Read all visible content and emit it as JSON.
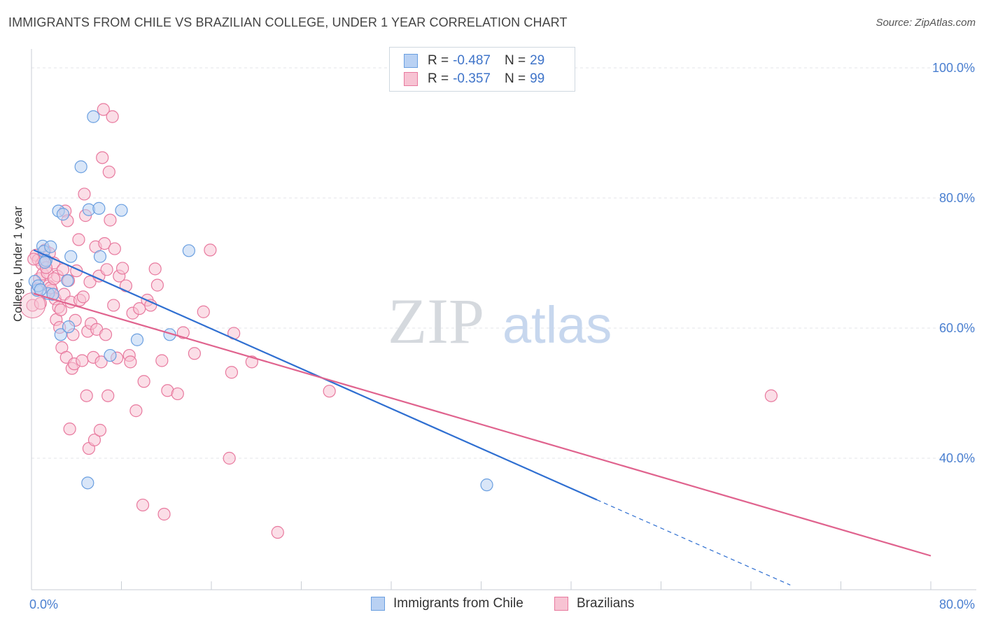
{
  "title": "IMMIGRANTS FROM CHILE VS BRAZILIAN COLLEGE, UNDER 1 YEAR CORRELATION CHART",
  "source": "Source: ZipAtlas.com",
  "watermark": {
    "zip": "ZIP",
    "atlas": "atlas"
  },
  "legend": {
    "items": [
      {
        "r_label": "R = ",
        "r_value": "-0.487",
        "n_label": "N = ",
        "n_value": "29"
      },
      {
        "r_label": "R = ",
        "r_value": "-0.357",
        "n_label": "N = ",
        "n_value": "99"
      }
    ]
  },
  "colors": {
    "blue": "#6a9fe0",
    "blue_fill": "#b9d1f3",
    "blue_line": "#2f6fd1",
    "pink": "#e8799e",
    "pink_fill": "#f7c3d3",
    "pink_line": "#e0638e",
    "grid": "#e3e6ea",
    "tick_text": "#4a7fd0"
  },
  "chart_data": {
    "type": "scatter",
    "xlabel": "",
    "ylabel": "College, Under 1 year",
    "xlim": [
      0,
      80
    ],
    "ylim": [
      20,
      102
    ],
    "x_tick_labels": [
      "0.0%",
      "80.0%"
    ],
    "y_ticks": [
      40,
      60,
      80,
      100
    ],
    "y_tick_labels": [
      "40.0%",
      "60.0%",
      "80.0%",
      "100.0%"
    ],
    "grid": true,
    "legend_position": "top-center",
    "series": [
      {
        "name": "Immigrants from Chile",
        "color": "blue",
        "points": [
          [
            0.3,
            67.2
          ],
          [
            0.5,
            65.8
          ],
          [
            0.6,
            66.5
          ],
          [
            1.0,
            72.6
          ],
          [
            1.1,
            71.8
          ],
          [
            1.3,
            70.4
          ],
          [
            1.5,
            65.3
          ],
          [
            1.7,
            72.5
          ],
          [
            2.4,
            78.0
          ],
          [
            2.6,
            59.0
          ],
          [
            2.8,
            77.5
          ],
          [
            3.2,
            67.3
          ],
          [
            3.3,
            60.2
          ],
          [
            3.5,
            71.0
          ],
          [
            4.4,
            84.8
          ],
          [
            5.0,
            36.2
          ],
          [
            5.1,
            78.2
          ],
          [
            5.5,
            92.5
          ],
          [
            6.0,
            78.4
          ],
          [
            6.1,
            71.0
          ],
          [
            7.0,
            55.8
          ],
          [
            8.0,
            78.1
          ],
          [
            9.4,
            58.2
          ],
          [
            12.3,
            59.0
          ],
          [
            14.0,
            71.9
          ],
          [
            40.5,
            35.9
          ],
          [
            0.8,
            65.9
          ],
          [
            1.2,
            70.1
          ],
          [
            1.9,
            65.2
          ]
        ],
        "trend": {
          "x0": 0.2,
          "y0": 72.0,
          "x1": 50.3,
          "y1": 33.6,
          "dash_to_x": 67.5,
          "dash_to_y": 20.5
        }
      },
      {
        "name": "Brazilians",
        "color": "pink",
        "points": [
          [
            0.1,
            63.5
          ],
          [
            0.4,
            71.2
          ],
          [
            0.6,
            70.5
          ],
          [
            0.7,
            67.6
          ],
          [
            0.9,
            69.9
          ],
          [
            1.0,
            68.3
          ],
          [
            1.1,
            70.4
          ],
          [
            1.2,
            72.0
          ],
          [
            1.4,
            68.5
          ],
          [
            1.5,
            66.5
          ],
          [
            1.6,
            71.5
          ],
          [
            1.8,
            65.8
          ],
          [
            1.9,
            65.2
          ],
          [
            2.0,
            70.0
          ],
          [
            2.1,
            64.5
          ],
          [
            2.2,
            61.3
          ],
          [
            2.3,
            68.0
          ],
          [
            2.4,
            63.2
          ],
          [
            2.5,
            60.1
          ],
          [
            2.6,
            62.8
          ],
          [
            2.7,
            57.0
          ],
          [
            2.8,
            69.0
          ],
          [
            2.9,
            65.2
          ],
          [
            3.0,
            78.0
          ],
          [
            3.1,
            55.5
          ],
          [
            3.2,
            76.5
          ],
          [
            3.3,
            67.3
          ],
          [
            3.4,
            44.5
          ],
          [
            3.5,
            64.0
          ],
          [
            3.6,
            53.8
          ],
          [
            3.7,
            59.0
          ],
          [
            3.8,
            54.5
          ],
          [
            3.9,
            61.2
          ],
          [
            4.0,
            68.8
          ],
          [
            4.2,
            73.6
          ],
          [
            4.3,
            64.3
          ],
          [
            4.5,
            55.0
          ],
          [
            4.6,
            64.8
          ],
          [
            4.7,
            80.6
          ],
          [
            4.8,
            77.3
          ],
          [
            4.9,
            49.6
          ],
          [
            5.0,
            59.5
          ],
          [
            5.1,
            41.5
          ],
          [
            5.2,
            67.1
          ],
          [
            5.3,
            60.7
          ],
          [
            5.5,
            55.5
          ],
          [
            5.6,
            42.8
          ],
          [
            5.7,
            72.5
          ],
          [
            5.8,
            59.8
          ],
          [
            6.0,
            68.0
          ],
          [
            6.1,
            44.3
          ],
          [
            6.2,
            54.8
          ],
          [
            6.3,
            86.2
          ],
          [
            6.4,
            93.6
          ],
          [
            6.5,
            73.0
          ],
          [
            6.6,
            59.0
          ],
          [
            6.7,
            69.0
          ],
          [
            6.8,
            49.6
          ],
          [
            6.9,
            84.0
          ],
          [
            7.0,
            76.6
          ],
          [
            7.2,
            92.5
          ],
          [
            7.3,
            63.5
          ],
          [
            7.4,
            72.2
          ],
          [
            7.6,
            55.4
          ],
          [
            7.8,
            68.0
          ],
          [
            8.1,
            69.2
          ],
          [
            8.4,
            66.5
          ],
          [
            8.7,
            55.8
          ],
          [
            8.8,
            54.8
          ],
          [
            9.0,
            62.3
          ],
          [
            9.3,
            47.3
          ],
          [
            9.6,
            63.0
          ],
          [
            9.9,
            32.8
          ],
          [
            10.0,
            51.8
          ],
          [
            10.3,
            64.3
          ],
          [
            10.6,
            63.5
          ],
          [
            11.0,
            69.1
          ],
          [
            11.2,
            66.6
          ],
          [
            11.6,
            55.0
          ],
          [
            11.8,
            31.4
          ],
          [
            12.1,
            50.4
          ],
          [
            13.0,
            49.9
          ],
          [
            13.5,
            59.3
          ],
          [
            14.5,
            56.1
          ],
          [
            15.3,
            62.5
          ],
          [
            15.9,
            72.0
          ],
          [
            17.6,
            40.0
          ],
          [
            17.8,
            53.2
          ],
          [
            18.0,
            59.2
          ],
          [
            19.6,
            54.8
          ],
          [
            21.9,
            28.6
          ],
          [
            26.5,
            50.3
          ],
          [
            65.8,
            49.6
          ],
          [
            0.2,
            70.6
          ],
          [
            0.5,
            66.0
          ],
          [
            0.8,
            63.8
          ],
          [
            1.3,
            69.3
          ],
          [
            1.7,
            66.2
          ],
          [
            2.0,
            67.6
          ]
        ],
        "trend": {
          "x0": 0.2,
          "y0": 65.3,
          "x1": 80.0,
          "y1": 25.0
        }
      }
    ]
  },
  "bottom_legend": [
    "Immigrants from Chile",
    "Brazilians"
  ]
}
